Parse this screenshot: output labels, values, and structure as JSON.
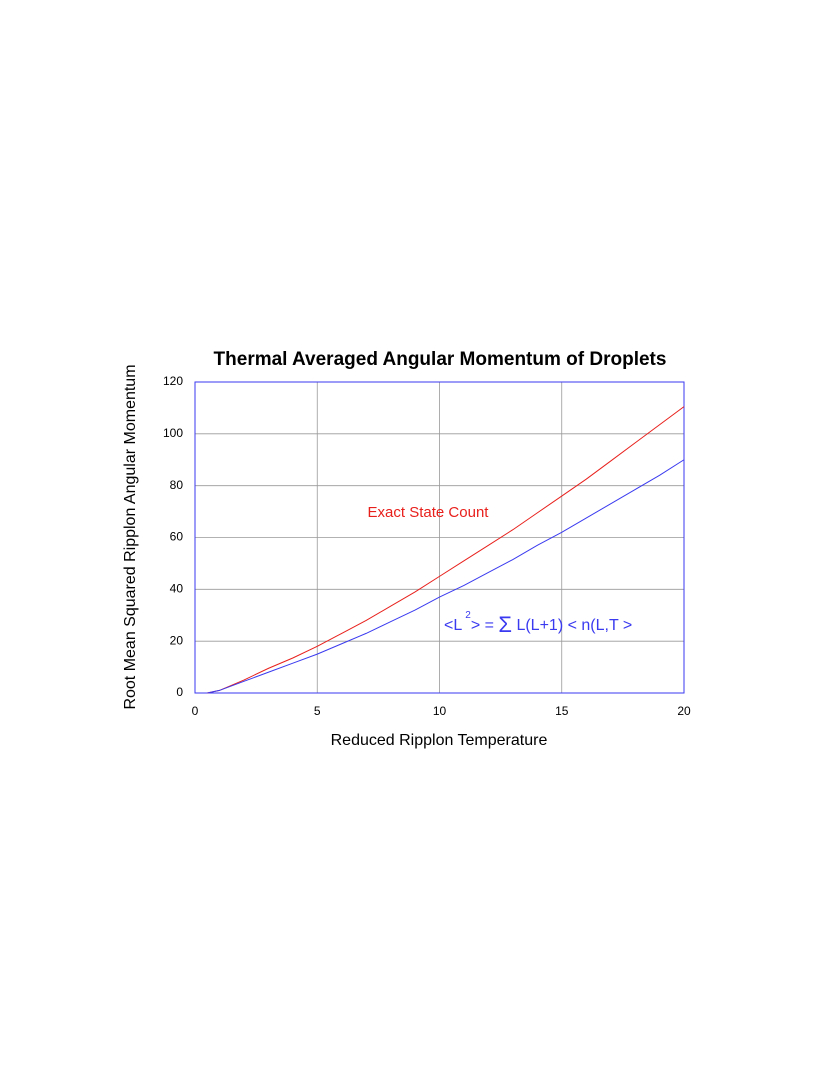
{
  "chart_data": {
    "type": "line",
    "title": "Thermal Averaged Angular Momentum of Droplets",
    "x_label": "Reduced Ripplon Temperature",
    "y_label": "Root Mean Squared Ripplon Angular Momentum",
    "x": [
      0.5,
      1,
      2,
      3,
      4,
      5,
      6,
      7,
      8,
      9,
      10,
      11,
      12,
      13,
      14,
      15,
      16,
      17,
      18,
      19,
      20
    ],
    "series": [
      {
        "color": "#e8201c",
        "values": [
          0,
          1,
          5,
          9.5,
          13.5,
          18,
          23,
          28,
          33.5,
          39,
          45,
          51,
          57,
          63,
          69.5,
          76,
          82.5,
          89.5,
          96.5,
          103.5,
          110.5
        ]
      },
      {
        "color": "#3a3af0",
        "values": [
          0,
          1,
          4.5,
          8,
          11.5,
          15,
          19,
          23,
          27.5,
          32,
          37,
          41.5,
          46.5,
          51.5,
          57,
          62,
          67.5,
          73,
          78.5,
          84,
          90
        ]
      }
    ],
    "annotations": [
      {
        "text": "Exact State Count",
        "color": "#e8201c"
      },
      {
        "color": "#3a3af0",
        "parts": [
          "<L",
          "2",
          "> = ",
          "Σ",
          " L(L+1) < n(L,T >"
        ]
      }
    ],
    "xlim": [
      0,
      20
    ],
    "xticks": [
      0,
      5,
      10,
      15,
      20
    ],
    "ylim": [
      0,
      120
    ],
    "yticks": [
      0,
      20,
      40,
      60,
      80,
      100,
      120
    ],
    "grid": true,
    "frame_color": "#3a3af0",
    "grid_color": "#999999"
  }
}
